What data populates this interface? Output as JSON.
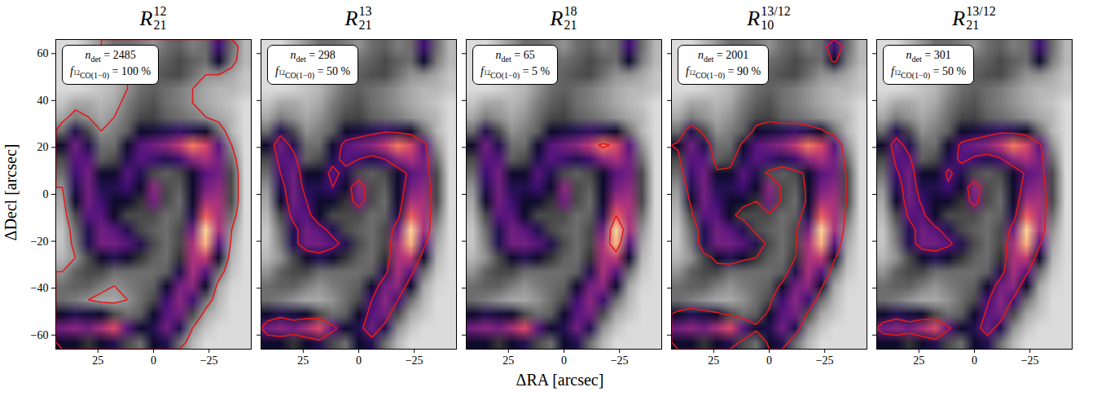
{
  "chart_data": {
    "type": "heatmap",
    "xlabel": "ΔRA [arcsec]",
    "ylabel": "ΔDecl [arcsec]",
    "xlim": [
      44,
      -44
    ],
    "ylim": [
      -66,
      66
    ],
    "xticks": [
      25,
      0,
      -25
    ],
    "yticks": [
      -60,
      -40,
      -20,
      0,
      20,
      40,
      60
    ],
    "color": "#e31a1c",
    "cells_range": [
      0,
      1
    ],
    "cells": [
      [
        0.05,
        0.05,
        0.1,
        0.15,
        0.2,
        0.2,
        0.18,
        0.15,
        0.2,
        0.22,
        0.18,
        0.2,
        0.4,
        0.2,
        0.1
      ],
      [
        0.05,
        0.05,
        0.08,
        0.12,
        0.15,
        0.18,
        0.2,
        0.2,
        0.22,
        0.25,
        0.22,
        0.2,
        0.3,
        0.18,
        0.1
      ],
      [
        0.05,
        0.05,
        0.08,
        0.1,
        0.12,
        0.15,
        0.2,
        0.22,
        0.24,
        0.25,
        0.2,
        0.15,
        0.15,
        0.12,
        0.08
      ],
      [
        0.05,
        0.05,
        0.06,
        0.08,
        0.1,
        0.15,
        0.2,
        0.22,
        0.2,
        0.18,
        0.15,
        0.12,
        0.1,
        0.1,
        0.08
      ],
      [
        0.08,
        0.12,
        0.12,
        0.1,
        0.12,
        0.18,
        0.22,
        0.24,
        0.2,
        0.18,
        0.15,
        0.12,
        0.1,
        0.08,
        0.05
      ],
      [
        0.12,
        0.18,
        0.15,
        0.12,
        0.15,
        0.2,
        0.25,
        0.26,
        0.22,
        0.2,
        0.18,
        0.15,
        0.12,
        0.1,
        0.05
      ],
      [
        0.2,
        0.35,
        0.25,
        0.15,
        0.18,
        0.22,
        0.3,
        0.32,
        0.35,
        0.38,
        0.35,
        0.3,
        0.2,
        0.1,
        0.05
      ],
      [
        0.3,
        0.5,
        0.35,
        0.2,
        0.2,
        0.3,
        0.45,
        0.5,
        0.55,
        0.65,
        0.8,
        0.7,
        0.45,
        0.15,
        0.05
      ],
      [
        0.25,
        0.45,
        0.45,
        0.22,
        0.25,
        0.35,
        0.45,
        0.4,
        0.35,
        0.4,
        0.55,
        0.6,
        0.5,
        0.2,
        0.05
      ],
      [
        0.2,
        0.4,
        0.5,
        0.3,
        0.3,
        0.45,
        0.35,
        0.25,
        0.22,
        0.25,
        0.3,
        0.45,
        0.5,
        0.25,
        0.05
      ],
      [
        0.15,
        0.35,
        0.5,
        0.35,
        0.35,
        0.4,
        0.3,
        0.55,
        0.25,
        0.22,
        0.3,
        0.5,
        0.55,
        0.25,
        0.05
      ],
      [
        0.12,
        0.3,
        0.5,
        0.4,
        0.3,
        0.3,
        0.28,
        0.5,
        0.25,
        0.2,
        0.3,
        0.6,
        0.6,
        0.25,
        0.05
      ],
      [
        0.1,
        0.25,
        0.45,
        0.45,
        0.3,
        0.25,
        0.25,
        0.25,
        0.2,
        0.22,
        0.35,
        0.75,
        0.6,
        0.2,
        0.05
      ],
      [
        0.08,
        0.2,
        0.35,
        0.5,
        0.45,
        0.35,
        0.25,
        0.22,
        0.2,
        0.25,
        0.5,
        0.95,
        0.6,
        0.15,
        0.05
      ],
      [
        0.08,
        0.18,
        0.35,
        0.5,
        0.5,
        0.45,
        0.35,
        0.25,
        0.2,
        0.25,
        0.6,
        0.9,
        0.45,
        0.12,
        0.05
      ],
      [
        0.1,
        0.15,
        0.25,
        0.3,
        0.35,
        0.3,
        0.28,
        0.22,
        0.2,
        0.28,
        0.6,
        0.65,
        0.3,
        0.1,
        0.05
      ],
      [
        0.15,
        0.22,
        0.25,
        0.25,
        0.2,
        0.2,
        0.2,
        0.2,
        0.22,
        0.35,
        0.6,
        0.45,
        0.2,
        0.08,
        0.05
      ],
      [
        0.2,
        0.22,
        0.22,
        0.18,
        0.15,
        0.18,
        0.2,
        0.22,
        0.3,
        0.5,
        0.55,
        0.3,
        0.12,
        0.06,
        0.05
      ],
      [
        0.2,
        0.18,
        0.15,
        0.12,
        0.12,
        0.15,
        0.2,
        0.25,
        0.4,
        0.55,
        0.4,
        0.2,
        0.1,
        0.05,
        0.05
      ],
      [
        0.3,
        0.35,
        0.32,
        0.3,
        0.25,
        0.2,
        0.22,
        0.3,
        0.45,
        0.5,
        0.25,
        0.12,
        0.08,
        0.05,
        0.05
      ],
      [
        0.5,
        0.55,
        0.5,
        0.6,
        0.7,
        0.45,
        0.3,
        0.35,
        0.5,
        0.35,
        0.15,
        0.08,
        0.05,
        0.05,
        0.05
      ],
      [
        0.3,
        0.3,
        0.28,
        0.3,
        0.35,
        0.25,
        0.2,
        0.3,
        0.35,
        0.2,
        0.1,
        0.05,
        0.05,
        0.05,
        0.05
      ]
    ],
    "annotation": {
      "n": "n",
      "n_sub": "det",
      "equals": "=",
      "f": "f",
      "f_sub_sup": "12",
      "f_sub": "CO(1−0)",
      "unit": "%"
    },
    "panels": [
      {
        "title": {
          "base": "R",
          "sup": "12",
          "sub": "21"
        },
        "n_det": 2485,
        "f_12co": 100,
        "contour_level": 0.15
      },
      {
        "title": {
          "base": "R",
          "sup": "13",
          "sub": "21"
        },
        "n_det": 298,
        "f_12co": 50,
        "contour_level": 0.4,
        "tick_labels": "x"
      },
      {
        "title": {
          "base": "R",
          "sup": "18",
          "sub": "21"
        },
        "n_det": 65,
        "f_12co": 5,
        "contour_level": 0.75,
        "tick_labels": "x"
      },
      {
        "title": {
          "base": "R",
          "sup": "13/12",
          "sub": "10"
        },
        "n_det": 2001,
        "f_12co": 90,
        "contour_level": 0.28,
        "tick_labels": "x"
      },
      {
        "title": {
          "base": "R",
          "sup": "13/12",
          "sub": "21"
        },
        "n_det": 301,
        "f_12co": 50,
        "contour_level": 0.42,
        "tick_labels": "x"
      }
    ]
  }
}
